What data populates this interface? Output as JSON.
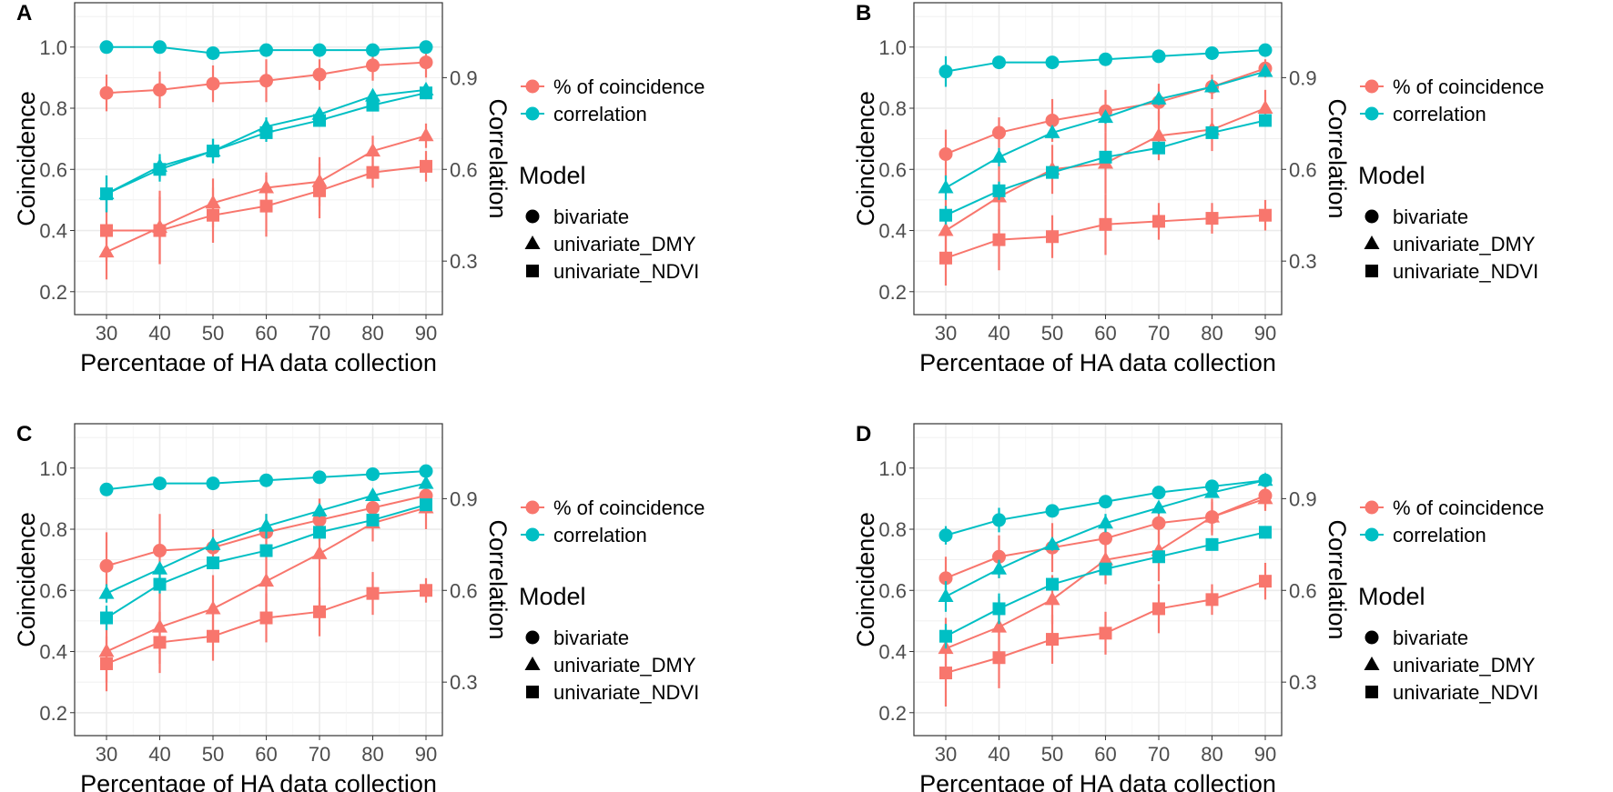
{
  "chart_data": [
    {
      "type": "line",
      "panel_label": "A",
      "xlabel": "Percentage of HA data collection",
      "ylabel": "Coincidence",
      "y2label": "Correlation",
      "x": [
        30,
        40,
        50,
        60,
        70,
        80,
        90
      ],
      "xticks": [
        "30",
        "40",
        "50",
        "60",
        "70",
        "80",
        "90"
      ],
      "yticks": [
        "0.2",
        "0.4",
        "0.6",
        "0.8",
        "1.0"
      ],
      "y2ticks": [
        "0.3",
        "0.6",
        "0.9"
      ],
      "ylim": [
        0.125,
        1.145
      ],
      "series": [
        {
          "metric": "% of coincidence",
          "model": "bivariate",
          "values": [
            0.85,
            0.86,
            0.88,
            0.89,
            0.91,
            0.94,
            0.95
          ],
          "err": [
            0.06,
            0.06,
            0.06,
            0.07,
            0.05,
            0.05,
            0.05
          ]
        },
        {
          "metric": "% of coincidence",
          "model": "univariate_DMY",
          "values": [
            0.33,
            0.41,
            0.49,
            0.54,
            0.56,
            0.66,
            0.71
          ],
          "err": [
            0.09,
            0.12,
            0.08,
            0.05,
            0.08,
            0.05,
            0.04
          ]
        },
        {
          "metric": "% of coincidence",
          "model": "univariate_NDVI",
          "values": [
            0.4,
            0.4,
            0.45,
            0.48,
            0.53,
            0.59,
            0.61
          ],
          "err": [
            0.1,
            0.11,
            0.09,
            0.1,
            0.09,
            0.05,
            0.05
          ]
        },
        {
          "metric": "correlation",
          "model": "bivariate",
          "values": [
            1.0,
            1.0,
            0.98,
            0.99,
            0.99,
            0.99,
            1.0
          ],
          "err": [
            0,
            0,
            0,
            0,
            0,
            0,
            0
          ]
        },
        {
          "metric": "correlation",
          "model": "univariate_DMY",
          "values": [
            0.52,
            0.61,
            0.66,
            0.74,
            0.78,
            0.84,
            0.86
          ],
          "err": [
            0.06,
            0.04,
            0.04,
            0.03,
            0.02,
            0.02,
            0.01
          ]
        },
        {
          "metric": "correlation",
          "model": "univariate_NDVI",
          "values": [
            0.52,
            0.6,
            0.66,
            0.72,
            0.76,
            0.81,
            0.85
          ],
          "err": [
            0.06,
            0.04,
            0.04,
            0.03,
            0.02,
            0.02,
            0.01
          ]
        }
      ]
    },
    {
      "type": "line",
      "panel_label": "B",
      "xlabel": "Percentage of HA data collection",
      "ylabel": "Coincidence",
      "y2label": "Correlation",
      "x": [
        30,
        40,
        50,
        60,
        70,
        80,
        90
      ],
      "xticks": [
        "30",
        "40",
        "50",
        "60",
        "70",
        "80",
        "90"
      ],
      "yticks": [
        "0.2",
        "0.4",
        "0.6",
        "0.8",
        "1.0"
      ],
      "y2ticks": [
        "0.3",
        "0.6",
        "0.9"
      ],
      "ylim": [
        0.125,
        1.145
      ],
      "series": [
        {
          "metric": "% of coincidence",
          "model": "bivariate",
          "values": [
            0.65,
            0.72,
            0.76,
            0.79,
            0.82,
            0.87,
            0.93
          ],
          "err": [
            0.08,
            0.05,
            0.07,
            0.07,
            0.06,
            0.04,
            0.03
          ]
        },
        {
          "metric": "% of coincidence",
          "model": "univariate_DMY",
          "values": [
            0.4,
            0.51,
            0.6,
            0.62,
            0.71,
            0.73,
            0.8
          ],
          "err": [
            0.1,
            0.12,
            0.08,
            0.1,
            0.08,
            0.07,
            0.06
          ]
        },
        {
          "metric": "% of coincidence",
          "model": "univariate_NDVI",
          "values": [
            0.31,
            0.37,
            0.38,
            0.42,
            0.43,
            0.44,
            0.45
          ],
          "err": [
            0.09,
            0.1,
            0.07,
            0.1,
            0.06,
            0.05,
            0.05
          ]
        },
        {
          "metric": "correlation",
          "model": "bivariate",
          "values": [
            0.92,
            0.95,
            0.95,
            0.96,
            0.97,
            0.98,
            0.99
          ],
          "err": [
            0.05,
            0,
            0,
            0,
            0,
            0,
            0
          ]
        },
        {
          "metric": "correlation",
          "model": "univariate_DMY",
          "values": [
            0.54,
            0.64,
            0.72,
            0.77,
            0.83,
            0.87,
            0.92
          ],
          "err": [
            0.04,
            0.03,
            0.02,
            0.02,
            0.02,
            0.01,
            0.01
          ]
        },
        {
          "metric": "correlation",
          "model": "univariate_NDVI",
          "values": [
            0.45,
            0.53,
            0.59,
            0.64,
            0.67,
            0.72,
            0.76
          ],
          "err": [
            0.03,
            0.03,
            0.02,
            0.02,
            0.02,
            0.01,
            0.01
          ]
        }
      ]
    },
    {
      "type": "line",
      "panel_label": "C",
      "xlabel": "Percentage of HA data collection",
      "ylabel": "Coincidence",
      "y2label": "Correlation",
      "x": [
        30,
        40,
        50,
        60,
        70,
        80,
        90
      ],
      "xticks": [
        "30",
        "40",
        "50",
        "60",
        "70",
        "80",
        "90"
      ],
      "yticks": [
        "0.2",
        "0.4",
        "0.6",
        "0.8",
        "1.0"
      ],
      "y2ticks": [
        "0.3",
        "0.6",
        "0.9"
      ],
      "ylim": [
        0.125,
        1.145
      ],
      "series": [
        {
          "metric": "% of coincidence",
          "model": "bivariate",
          "values": [
            0.68,
            0.73,
            0.74,
            0.79,
            0.83,
            0.87,
            0.91
          ],
          "err": [
            0.11,
            0.12,
            0.06,
            0.06,
            0.07,
            0.04,
            0.04
          ]
        },
        {
          "metric": "% of coincidence",
          "model": "univariate_DMY",
          "values": [
            0.4,
            0.48,
            0.54,
            0.63,
            0.72,
            0.82,
            0.87
          ],
          "err": [
            0.1,
            0.12,
            0.11,
            0.1,
            0.18,
            0.06,
            0.07
          ]
        },
        {
          "metric": "% of coincidence",
          "model": "univariate_NDVI",
          "values": [
            0.36,
            0.43,
            0.45,
            0.51,
            0.53,
            0.59,
            0.6
          ],
          "err": [
            0.09,
            0.1,
            0.08,
            0.08,
            0.08,
            0.07,
            0.04
          ]
        },
        {
          "metric": "correlation",
          "model": "bivariate",
          "values": [
            0.93,
            0.95,
            0.95,
            0.96,
            0.97,
            0.98,
            0.99
          ],
          "err": [
            0,
            0,
            0,
            0,
            0,
            0,
            0
          ]
        },
        {
          "metric": "correlation",
          "model": "univariate_DMY",
          "values": [
            0.59,
            0.67,
            0.75,
            0.81,
            0.86,
            0.91,
            0.95
          ],
          "err": [
            0.03,
            0.02,
            0.02,
            0.04,
            0.02,
            0.01,
            0.01
          ]
        },
        {
          "metric": "correlation",
          "model": "univariate_NDVI",
          "values": [
            0.51,
            0.62,
            0.69,
            0.73,
            0.79,
            0.83,
            0.88
          ],
          "err": [
            0.04,
            0.03,
            0.02,
            0.02,
            0.02,
            0.01,
            0.01
          ]
        }
      ]
    },
    {
      "type": "line",
      "panel_label": "D",
      "xlabel": "Percentage of HA data collection",
      "ylabel": "Coincidence",
      "y2label": "Correlation",
      "x": [
        30,
        40,
        50,
        60,
        70,
        80,
        90
      ],
      "xticks": [
        "30",
        "40",
        "50",
        "60",
        "70",
        "80",
        "90"
      ],
      "yticks": [
        "0.2",
        "0.4",
        "0.6",
        "0.8",
        "1.0"
      ],
      "y2ticks": [
        "0.3",
        "0.6",
        "0.9"
      ],
      "ylim": [
        0.125,
        1.145
      ],
      "series": [
        {
          "metric": "% of coincidence",
          "model": "bivariate",
          "values": [
            0.64,
            0.71,
            0.74,
            0.77,
            0.82,
            0.84,
            0.91
          ],
          "err": [
            0.07,
            0.07,
            0.08,
            0.06,
            0.06,
            0.05,
            0.04
          ]
        },
        {
          "metric": "% of coincidence",
          "model": "univariate_DMY",
          "values": [
            0.41,
            0.48,
            0.57,
            0.7,
            0.73,
            0.84,
            0.9
          ],
          "err": [
            0.1,
            0.1,
            0.08,
            0.08,
            0.1,
            0.06,
            0.04
          ]
        },
        {
          "metric": "% of coincidence",
          "model": "univariate_NDVI",
          "values": [
            0.33,
            0.38,
            0.44,
            0.46,
            0.54,
            0.57,
            0.63
          ],
          "err": [
            0.11,
            0.1,
            0.08,
            0.07,
            0.08,
            0.05,
            0.06
          ]
        },
        {
          "metric": "correlation",
          "model": "bivariate",
          "values": [
            0.78,
            0.83,
            0.86,
            0.89,
            0.92,
            0.94,
            0.96
          ],
          "err": [
            0.03,
            0.04,
            0,
            0,
            0,
            0,
            0
          ]
        },
        {
          "metric": "correlation",
          "model": "univariate_DMY",
          "values": [
            0.58,
            0.67,
            0.75,
            0.82,
            0.87,
            0.92,
            0.96
          ],
          "err": [
            0.05,
            0.03,
            0.02,
            0.03,
            0.02,
            0.01,
            0.01
          ]
        },
        {
          "metric": "correlation",
          "model": "univariate_NDVI",
          "values": [
            0.45,
            0.54,
            0.62,
            0.67,
            0.71,
            0.75,
            0.79
          ],
          "err": [
            0.04,
            0.05,
            0.02,
            0.02,
            0.02,
            0.01,
            0.01
          ]
        }
      ]
    }
  ],
  "legend": {
    "color_items": [
      "% of coincidence",
      "correlation"
    ],
    "model_title": "Model",
    "model_items": [
      "bivariate",
      "univariate_DMY",
      "univariate_NDVI"
    ]
  },
  "colors": {
    "coincidence": "#F8766D",
    "correlation": "#00BFC4"
  }
}
